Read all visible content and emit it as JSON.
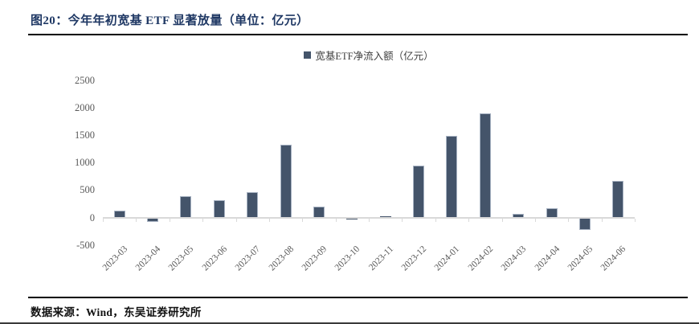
{
  "header": {
    "title": "图20：今年年初宽基 ETF 显著放量（单位：亿元）"
  },
  "footer": {
    "source": "数据来源：Wind，东吴证券研究所"
  },
  "chart_data": {
    "type": "bar",
    "title": "今年年初宽基ETF显著放量",
    "legend": [
      "宽基ETF净流入额（亿元）"
    ],
    "legend_position": "top-center",
    "categories": [
      "2023-03",
      "2023-04",
      "2023-05",
      "2023-06",
      "2023-07",
      "2023-08",
      "2023-09",
      "2023-10",
      "2023-11",
      "2023-12",
      "2024-01",
      "2024-02",
      "2024-03",
      "2024-04",
      "2024-05",
      "2024-06"
    ],
    "values": [
      130,
      -80,
      400,
      320,
      470,
      1330,
      200,
      -25,
      25,
      950,
      1490,
      1910,
      70,
      180,
      -220,
      670
    ],
    "xlabel": "",
    "ylabel": "",
    "ylim": [
      -500,
      2500
    ],
    "yticks": [
      2500,
      2000,
      1500,
      1000,
      500,
      0,
      -500
    ],
    "grid": false,
    "colors": {
      "bar_fill": "#44546A",
      "bar_border": "#A7B2C2",
      "axis_line": "#D9D9D9",
      "tick_text": "#595959",
      "title_text": "#1F3864"
    }
  }
}
